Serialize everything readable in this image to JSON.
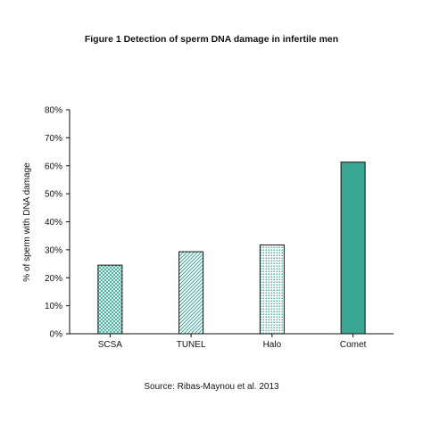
{
  "title": "Figure 1 Detection of sperm DNA damage in infertile men",
  "source": "Source: Ribas-Maynou et al. 2013",
  "colors": {
    "accent": "#3aa794",
    "axis": "#111111"
  },
  "chart_data": {
    "type": "bar",
    "title": "Figure 1 Detection of sperm DNA damage in infertile men",
    "xlabel": "",
    "ylabel": "% of sperm with DNA damage",
    "categories": [
      "SCSA",
      "TUNEL",
      "Halo",
      "Comet"
    ],
    "values": [
      24.5,
      29.3,
      31.7,
      61.3
    ],
    "fills": [
      "crosshatch",
      "diagonal",
      "dots",
      "solid"
    ],
    "ylim": [
      0,
      80
    ],
    "yticks": [
      "0%",
      "10%",
      "20%",
      "30%",
      "40%",
      "50%",
      "60%",
      "70%",
      "80%"
    ],
    "grid": false,
    "legend": "none"
  }
}
